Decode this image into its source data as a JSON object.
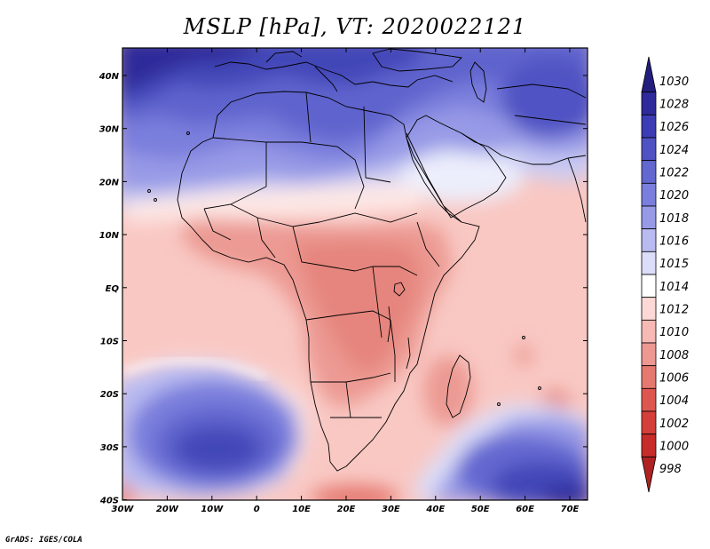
{
  "title": "MSLP [hPa], VT: 2020022121",
  "credit": "GrADS: IGES/COLA",
  "axes": {
    "x_ticks": [
      "30W",
      "20W",
      "10W",
      "0",
      "10E",
      "20E",
      "30E",
      "40E",
      "50E",
      "60E",
      "70E"
    ],
    "y_ticks": [
      "40N",
      "30N",
      "20N",
      "10N",
      "EQ",
      "10S",
      "20S",
      "30S",
      "40S"
    ]
  },
  "colorbar": {
    "levels": [
      {
        "label": "1030",
        "color": "#231e7d"
      },
      {
        "label": "1028",
        "color": "#2e2a9a"
      },
      {
        "label": "1026",
        "color": "#3c3cb4"
      },
      {
        "label": "1024",
        "color": "#4f52c3"
      },
      {
        "label": "1022",
        "color": "#6367d0"
      },
      {
        "label": "1020",
        "color": "#7a7edc"
      },
      {
        "label": "1018",
        "color": "#979ae6"
      },
      {
        "label": "1016",
        "color": "#b8baf0"
      },
      {
        "label": "1015",
        "color": "#dcddf8"
      },
      {
        "label": "1014",
        "color": "#ffffff"
      },
      {
        "label": "1012",
        "color": "#fcd9d6"
      },
      {
        "label": "1010",
        "color": "#f7b9b4"
      },
      {
        "label": "1008",
        "color": "#ed9892"
      },
      {
        "label": "1006",
        "color": "#e5786f"
      },
      {
        "label": "1004",
        "color": "#de5650"
      },
      {
        "label": "1002",
        "color": "#d43f3a"
      },
      {
        "label": "1000",
        "color": "#c62c29"
      },
      {
        "label": "998",
        "color": "#ae2221"
      }
    ]
  }
}
